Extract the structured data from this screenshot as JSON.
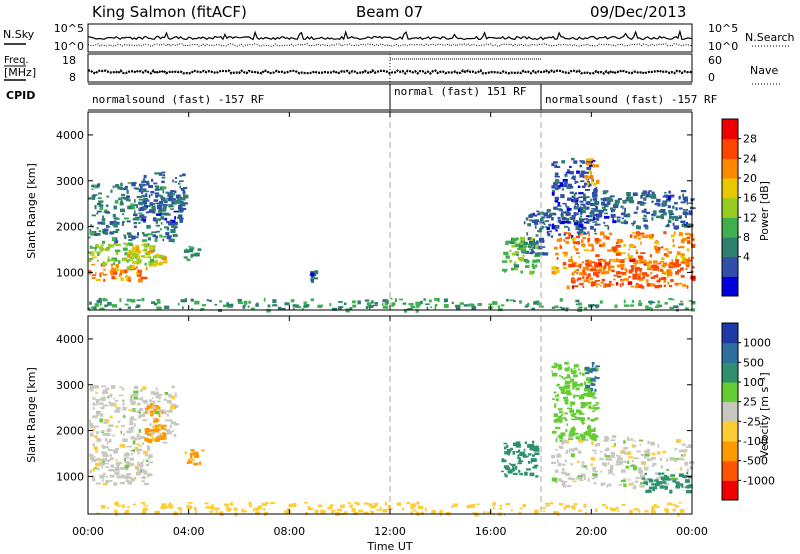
{
  "header": {
    "station": "King Salmon (fitACF)",
    "beam": "Beam 07",
    "date": "09/Dec/2013"
  },
  "colors": {
    "power_scale": [
      "#0000dd",
      "#2f4fa8",
      "#2f7f6f",
      "#3fb050",
      "#99cc22",
      "#e8c800",
      "#ff8800",
      "#ff4400",
      "#ee0000"
    ],
    "velocity_scale": [
      "#1e3aa8",
      "#2f6f9f",
      "#2f8f6f",
      "#66cc33",
      "#c8c8c0",
      "#ffcc33",
      "#ff9900",
      "#ff5500",
      "#ee0000"
    ]
  },
  "chart_data": [
    {
      "type": "line",
      "panel": "nsky-nsearch",
      "left_label": "N.Sky",
      "right_label": "N.Search",
      "left_ticks": [
        "10^5",
        "10^0"
      ],
      "right_ticks": [
        "10^5",
        "10^0"
      ],
      "ylim": [
        1,
        100000
      ],
      "yscale": "log"
    },
    {
      "type": "line",
      "panel": "freq-nave",
      "left_label": "Freq.",
      "left_unit": "[MHz]",
      "right_label": "Nave",
      "left_ticks": [
        18,
        8
      ],
      "right_ticks": [
        60,
        0
      ],
      "ylim_left": [
        8,
        18
      ],
      "ylim_right": [
        0,
        60
      ]
    },
    {
      "type": "table",
      "panel": "cpid",
      "label": "CPID",
      "segments": [
        {
          "start": 0,
          "end": 12,
          "name": "normalsound (fast) -157 RF"
        },
        {
          "start": 12,
          "end": 18,
          "name": "normal (fast) 151 RF"
        },
        {
          "start": 18,
          "end": 24,
          "name": "normalsound (fast) -157 RF"
        }
      ]
    },
    {
      "type": "heatmap",
      "panel": "power",
      "ylabel": "Slant Range [km]",
      "xlabel": "Time UT",
      "x_ticks": [
        "00:00",
        "04:00",
        "08:00",
        "12:00",
        "16:00",
        "20:00",
        "00:00"
      ],
      "xlim_hours": [
        0,
        24
      ],
      "y_ticks": [
        1000,
        2000,
        3000,
        4000
      ],
      "ylim": [
        180,
        4500
      ],
      "colorbar": {
        "label": "Power [dB]",
        "ticks": [
          "28",
          "24",
          "20",
          "16",
          "12",
          "8",
          "4"
        ],
        "range": [
          0,
          30
        ]
      },
      "regions": [
        {
          "t0": 0.0,
          "t1": 2.2,
          "r0": 850,
          "r1": 1200,
          "v": 22
        },
        {
          "t0": 0.0,
          "t1": 2.5,
          "r0": 1200,
          "r1": 1700,
          "v": 14
        },
        {
          "t0": 1.5,
          "t1": 3.0,
          "r0": 1100,
          "r1": 1600,
          "v": 18
        },
        {
          "t0": 0.0,
          "t1": 3.5,
          "r0": 1700,
          "r1": 3000,
          "v": 8
        },
        {
          "t0": 2.0,
          "t1": 3.8,
          "r0": 2100,
          "r1": 3200,
          "v": 6
        },
        {
          "t0": 3.8,
          "t1": 4.5,
          "r0": 1300,
          "r1": 1600,
          "v": 9
        },
        {
          "t0": 8.8,
          "t1": 9.0,
          "r0": 850,
          "r1": 1050,
          "v": 6
        },
        {
          "t0": 0.0,
          "t1": 24.0,
          "r0": 200,
          "r1": 450,
          "v": 10
        },
        {
          "t0": 16.4,
          "t1": 17.8,
          "r0": 1000,
          "r1": 1800,
          "v": 12
        },
        {
          "t0": 17.3,
          "t1": 18.4,
          "r0": 1400,
          "r1": 2400,
          "v": 6
        },
        {
          "t0": 18.4,
          "t1": 20.2,
          "r0": 1800,
          "r1": 3500,
          "v": 5
        },
        {
          "t0": 18.4,
          "t1": 24.0,
          "r0": 1000,
          "r1": 1900,
          "v": 22
        },
        {
          "t0": 19.0,
          "t1": 24.0,
          "r0": 700,
          "r1": 1300,
          "v": 24
        },
        {
          "t0": 19.5,
          "t1": 24.0,
          "r0": 2000,
          "r1": 2800,
          "v": 6
        },
        {
          "t0": 19.7,
          "t1": 20.2,
          "r0": 2900,
          "r1": 3500,
          "v": 20
        }
      ]
    },
    {
      "type": "heatmap",
      "panel": "velocity",
      "ylabel": "Slant Range [km]",
      "xlabel": "Time UT",
      "x_ticks": [
        "00:00",
        "04:00",
        "08:00",
        "12:00",
        "16:00",
        "20:00",
        "00:00"
      ],
      "xlim_hours": [
        0,
        24
      ],
      "y_ticks": [
        1000,
        2000,
        3000,
        4000
      ],
      "ylim": [
        180,
        4500
      ],
      "colorbar": {
        "label": "Velocity [m s⁻¹]",
        "ticks": [
          "1000",
          "500",
          "100",
          "25",
          "-25",
          "-100",
          "-500",
          "-1000"
        ],
        "range": [
          -1000,
          1000
        ]
      },
      "regions": [
        {
          "t0": 0.0,
          "t1": 2.5,
          "r0": 850,
          "r1": 1700,
          "v": 0
        },
        {
          "t0": 0.0,
          "t1": 3.5,
          "r0": 1700,
          "r1": 3000,
          "v": 0
        },
        {
          "t0": 2.2,
          "t1": 3.0,
          "r0": 1800,
          "r1": 2600,
          "v": -150
        },
        {
          "t0": 3.8,
          "t1": 4.5,
          "r0": 1300,
          "r1": 1600,
          "v": -120
        },
        {
          "t0": 0.0,
          "t1": 24.0,
          "r0": 200,
          "r1": 450,
          "v": -60
        },
        {
          "t0": 16.4,
          "t1": 17.8,
          "r0": 1000,
          "r1": 1800,
          "v": 150
        },
        {
          "t0": 18.4,
          "t1": 24.0,
          "r0": 800,
          "r1": 1900,
          "v": 0
        },
        {
          "t0": 18.4,
          "t1": 20.2,
          "r0": 1800,
          "r1": 3500,
          "v": 60
        },
        {
          "t0": 19.7,
          "t1": 20.2,
          "r0": 2900,
          "r1": 3500,
          "v": 800
        },
        {
          "t0": 22.0,
          "t1": 24.0,
          "r0": 700,
          "r1": 1100,
          "v": 150
        }
      ]
    }
  ]
}
